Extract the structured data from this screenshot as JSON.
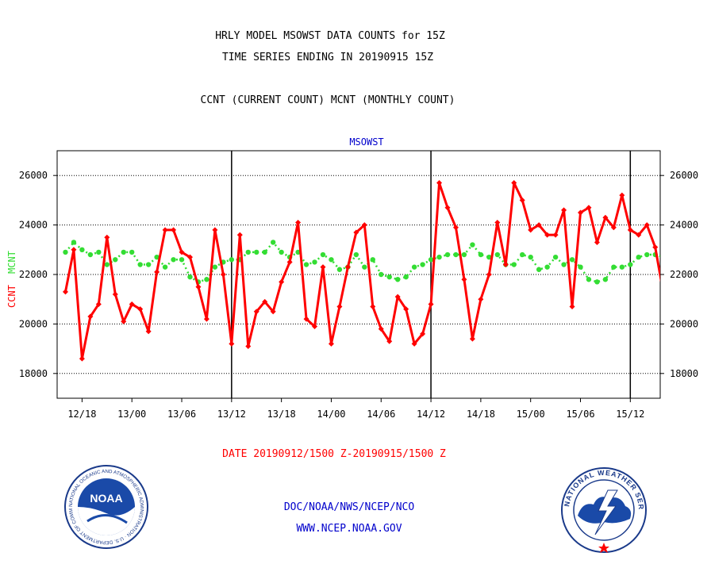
{
  "header": {
    "line1": "HRLY MODEL MSOWST DATA COUNTS for 15Z",
    "line2": "TIME SERIES ENDING IN 20190915 15Z",
    "line3": "CCNT (CURRENT COUNT) MCNT (MONTHLY COUNT)"
  },
  "footer": {
    "date_range": "DATE 20190912/1500 Z-20190915/1500 Z",
    "org": "DOC/NOAA/NWS/NCEP/NCO",
    "url": "WWW.NCEP.NOAA.GOV"
  },
  "logos": {
    "noaa_label": "NOAA",
    "noaa_ring": "NATIONAL OCEANIC AND ATMOSPHERIC ADMINISTRATION · U.S. DEPARTMENT OF COMMERCE ·",
    "nws_ring": "NATIONAL WEATHER SERVICE"
  },
  "colors": {
    "ccnt": "#ff0000",
    "mcnt": "#33dd33",
    "title": "#000000",
    "footer_date": "#ff0000",
    "footer_links": "#0000cc",
    "subtitle": "#0000cc"
  },
  "chart_data": {
    "type": "line",
    "title": "MSOWST",
    "ylabel_ccnt": "CCNT",
    "ylabel_mcnt": "MCNT",
    "ylim": [
      17000,
      27000
    ],
    "yticks": [
      18000,
      20000,
      22000,
      24000,
      26000
    ],
    "ytick_labels": [
      "18000",
      "20000",
      "22000",
      "24000",
      "26000"
    ],
    "xlim": [
      -1,
      71.6
    ],
    "xticks": [
      {
        "x": 2,
        "label": "12/18"
      },
      {
        "x": 8,
        "label": "13/00"
      },
      {
        "x": 14,
        "label": "13/06"
      },
      {
        "x": 20,
        "label": "13/12"
      },
      {
        "x": 26,
        "label": "13/18"
      },
      {
        "x": 32,
        "label": "14/00"
      },
      {
        "x": 38,
        "label": "14/06"
      },
      {
        "x": 44,
        "label": "14/12"
      },
      {
        "x": 50,
        "label": "14/18"
      },
      {
        "x": 56,
        "label": "15/00"
      },
      {
        "x": 62,
        "label": "15/06"
      },
      {
        "x": 68,
        "label": "15/12"
      }
    ],
    "day_boundaries": [
      20,
      44,
      68
    ],
    "grid": "horizontal-dotted",
    "series": [
      {
        "name": "CCNT",
        "values": [
          21300,
          23000,
          18600,
          20300,
          20800,
          23500,
          21200,
          20100,
          20800,
          20600,
          19700,
          22100,
          23800,
          23800,
          22900,
          22700,
          21500,
          20200,
          23800,
          22000,
          19200,
          23600,
          19100,
          20500,
          20900,
          20500,
          21700,
          22500,
          24100,
          20200,
          19900,
          22300,
          19200,
          20700,
          22300,
          23700,
          24000,
          20700,
          19800,
          19300,
          21100,
          20600,
          19200,
          19600,
          20800,
          25700,
          24700,
          23900,
          21800,
          19400,
          21000,
          22000,
          24100,
          22400,
          25700,
          25000,
          23800,
          24000,
          23600,
          23600,
          24600,
          20700,
          24500,
          24700,
          23300,
          24300,
          23900,
          25200,
          23800,
          23600,
          24000,
          23100,
          21200
        ]
      },
      {
        "name": "MCNT",
        "values": [
          22900,
          23300,
          23000,
          22800,
          22900,
          22400,
          22600,
          22900,
          22900,
          22400,
          22400,
          22700,
          22300,
          22600,
          22600,
          21900,
          21700,
          21800,
          22300,
          22500,
          22600,
          22600,
          22900,
          22900,
          22900,
          23300,
          22900,
          22700,
          22900,
          22400,
          22500,
          22800,
          22600,
          22200,
          22300,
          22800,
          22300,
          22600,
          22000,
          21900,
          21800,
          21900,
          22300,
          22400,
          22600,
          22700,
          22800,
          22800,
          22800,
          23200,
          22800,
          22700,
          22800,
          22400,
          22400,
          22800,
          22700,
          22200,
          22300,
          22700,
          22400,
          22600,
          22300,
          21800,
          21700,
          21800,
          22300,
          22300,
          22400,
          22700,
          22800,
          22800,
          22700
        ]
      }
    ]
  }
}
